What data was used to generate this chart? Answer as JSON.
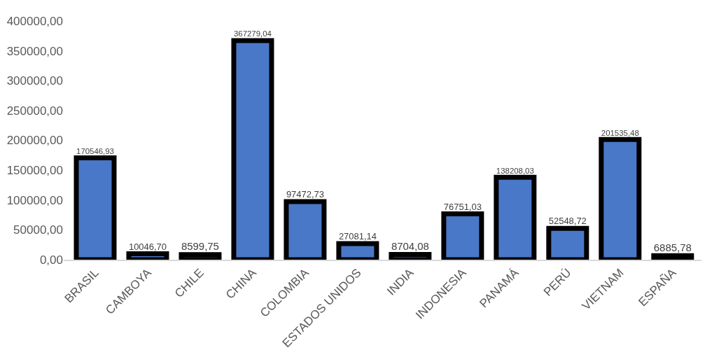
{
  "chart_data": {
    "type": "bar",
    "categories": [
      "BRASIL",
      "CAMBOYA",
      "CHILE",
      "CHINA",
      "COLOMBIA",
      "ESTADOS UNIDOS",
      "INDIA",
      "INDONESIA",
      "PANAMÁ",
      "PERÚ",
      "VIETNAM",
      "ESPAÑA"
    ],
    "values": [
      170546.93,
      10046.7,
      8599.75,
      367279.04,
      97472.73,
      27081.14,
      8704.08,
      76751.03,
      138208.03,
      52548.72,
      201535.48,
      6885.78
    ],
    "value_labels": [
      "170546,93",
      "10046,70",
      "8599,75",
      "367279,04",
      "97472,73",
      "27081,14",
      "8704,08",
      "76751,03",
      "138208,03",
      "52548,72",
      "201535,48",
      "6885,78"
    ],
    "color": "#4a78c8",
    "ylim": [
      0,
      400000
    ],
    "yticks": [
      {
        "value": 0,
        "label": "0,00"
      },
      {
        "value": 50000,
        "label": "50000,00"
      },
      {
        "value": 100000,
        "label": "100000,00"
      },
      {
        "value": 150000,
        "label": "150000,00"
      },
      {
        "value": 200000,
        "label": "200000,00"
      },
      {
        "value": 250000,
        "label": "250000,00"
      },
      {
        "value": 300000,
        "label": "300000,00"
      },
      {
        "value": 350000,
        "label": "350000,00"
      },
      {
        "value": 400000,
        "label": "400000,00"
      }
    ],
    "grid": false,
    "legend": false
  }
}
